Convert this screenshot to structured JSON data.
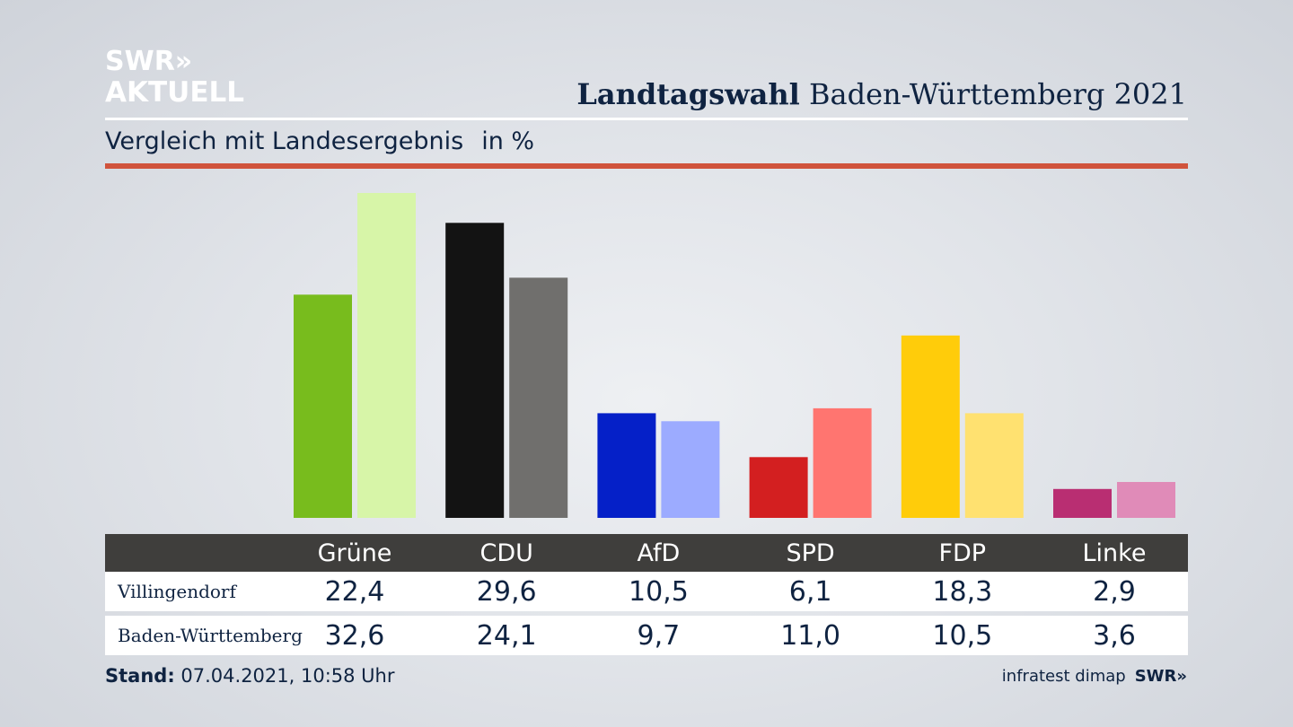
{
  "logo": {
    "line1": "SWR»",
    "line2": "AKTUELL"
  },
  "header": {
    "title_bold": "Landtagswahl",
    "title_rest": " Baden-Württemberg 2021",
    "subtitle": "Vergleich mit Landesergebnis",
    "unit": "in %"
  },
  "chart_data": {
    "type": "bar",
    "title": "Landtagswahl Baden-Württemberg 2021",
    "subtitle": "Vergleich mit Landesergebnis",
    "ylabel": "in %",
    "ylim": [
      0,
      32.6
    ],
    "categories": [
      "Grüne",
      "CDU",
      "AfD",
      "SPD",
      "FDP",
      "Linke"
    ],
    "series": [
      {
        "name": "Villingendorf",
        "values": [
          22.4,
          29.6,
          10.5,
          6.1,
          18.3,
          2.9
        ],
        "labels": [
          "22,4",
          "29,6",
          "10,5",
          "6,1",
          "18,3",
          "2,9"
        ]
      },
      {
        "name": "Baden-Württemberg",
        "values": [
          32.6,
          24.1,
          9.7,
          11.0,
          10.5,
          3.6
        ],
        "labels": [
          "32,6",
          "24,1",
          "9,7",
          "11,0",
          "10,5",
          "3,6"
        ]
      }
    ],
    "colors": {
      "primary": [
        "#78bc1d",
        "#131313",
        "#0520c8",
        "#d31f20",
        "#ffcc0a",
        "#b92e72"
      ],
      "secondary": [
        "#d7f5a8",
        "#706f6d",
        "#9cabff",
        "#ff7570",
        "#ffe170",
        "#e08bb8"
      ]
    }
  },
  "footer": {
    "stand_label": "Stand:",
    "stand_value": " 07.04.2021, 10:58 Uhr"
  },
  "credit": {
    "source": "infratest dimap",
    "brand": "SWR»"
  }
}
